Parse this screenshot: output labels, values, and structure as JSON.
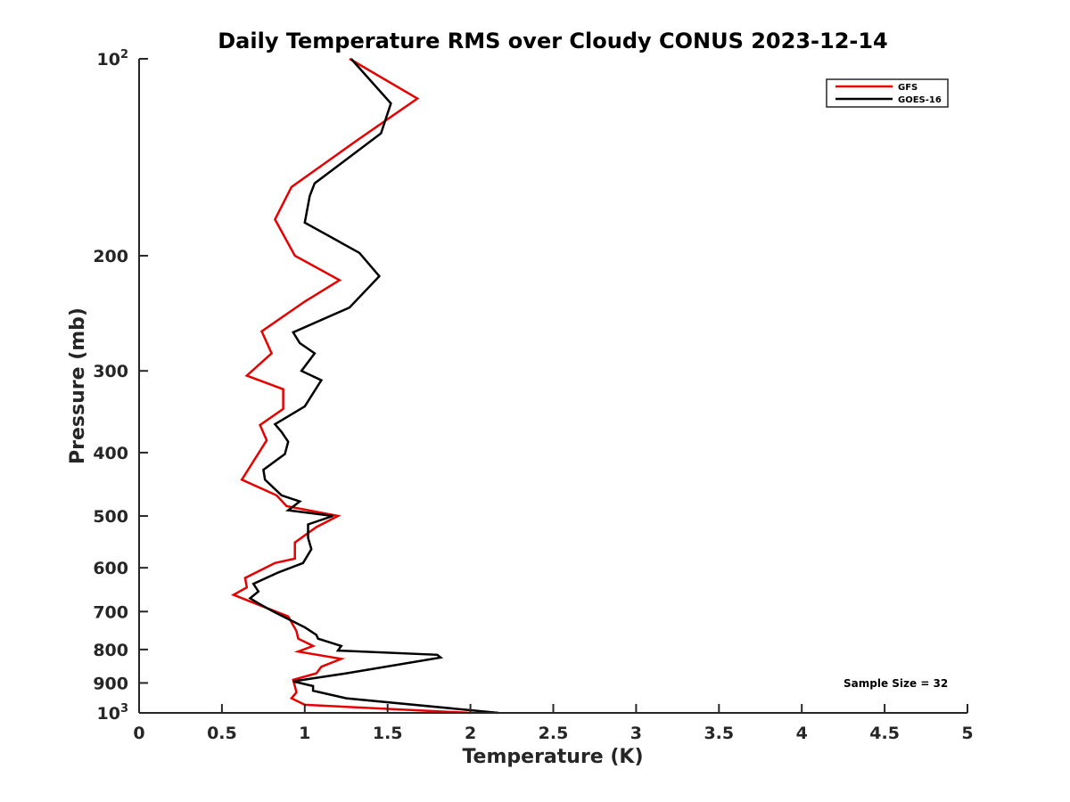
{
  "chart_data": {
    "type": "line",
    "title": "Daily Temperature RMS over Cloudy CONUS 2023-12-14",
    "xlabel": "Temperature (K)",
    "ylabel": "Pressure (mb)",
    "xlim": [
      0,
      5
    ],
    "ylim": [
      1000,
      100
    ],
    "y_scale": "log",
    "grid": false,
    "legend_position": "top-right",
    "x_ticks": [
      0,
      0.5,
      1,
      1.5,
      2,
      2.5,
      3,
      3.5,
      4,
      4.5,
      5
    ],
    "x_tick_labels": [
      "0",
      "0.5",
      "1",
      "1.5",
      "2",
      "2.5",
      "3",
      "3.5",
      "4",
      "4.5",
      "5"
    ],
    "y_ticks": [
      {
        "value": 100,
        "base": "10",
        "exp": "2"
      },
      {
        "value": 200,
        "label": "200"
      },
      {
        "value": 300,
        "label": "300"
      },
      {
        "value": 400,
        "label": "400"
      },
      {
        "value": 500,
        "label": "500"
      },
      {
        "value": 600,
        "label": "600"
      },
      {
        "value": 700,
        "label": "700"
      },
      {
        "value": 800,
        "label": "800"
      },
      {
        "value": 900,
        "label": "900"
      },
      {
        "value": 1000,
        "base": "10",
        "exp": "3"
      }
    ],
    "annotation": "Sample Size = 32",
    "series": [
      {
        "name": "GFS",
        "color": "#e60000",
        "points": [
          [
            1.27,
            100
          ],
          [
            1.68,
            115
          ],
          [
            1.32,
            133
          ],
          [
            0.92,
            157
          ],
          [
            0.82,
            176
          ],
          [
            0.94,
            200
          ],
          [
            1.21,
            218
          ],
          [
            1.0,
            235
          ],
          [
            0.74,
            261
          ],
          [
            0.8,
            282
          ],
          [
            0.65,
            305
          ],
          [
            0.87,
            320
          ],
          [
            0.87,
            343
          ],
          [
            0.73,
            363
          ],
          [
            0.77,
            383
          ],
          [
            0.62,
            440
          ],
          [
            0.83,
            465
          ],
          [
            0.89,
            483
          ],
          [
            1.2,
            500
          ],
          [
            1.07,
            520
          ],
          [
            0.94,
            549
          ],
          [
            0.94,
            581
          ],
          [
            0.82,
            590
          ],
          [
            0.64,
            622
          ],
          [
            0.65,
            643
          ],
          [
            0.57,
            660
          ],
          [
            0.75,
            688
          ],
          [
            0.9,
            712
          ],
          [
            0.95,
            750
          ],
          [
            0.96,
            770
          ],
          [
            1.05,
            790
          ],
          [
            0.96,
            806
          ],
          [
            1.22,
            827
          ],
          [
            1.1,
            850
          ],
          [
            1.07,
            870
          ],
          [
            0.93,
            890
          ],
          [
            0.95,
            930
          ],
          [
            0.92,
            950
          ],
          [
            1.0,
            972
          ],
          [
            2.0,
            1000
          ]
        ]
      },
      {
        "name": "GOES-16",
        "color": "#000000",
        "points": [
          [
            1.28,
            100
          ],
          [
            1.52,
            117
          ],
          [
            1.46,
            130
          ],
          [
            1.06,
            155
          ],
          [
            1.03,
            162
          ],
          [
            1.0,
            178
          ],
          [
            1.33,
            198
          ],
          [
            1.45,
            215
          ],
          [
            1.27,
            240
          ],
          [
            0.93,
            262
          ],
          [
            0.97,
            272
          ],
          [
            1.06,
            282
          ],
          [
            0.98,
            300
          ],
          [
            1.1,
            310
          ],
          [
            1.0,
            340
          ],
          [
            0.82,
            362
          ],
          [
            0.86,
            372
          ],
          [
            0.9,
            385
          ],
          [
            0.88,
            402
          ],
          [
            0.75,
            425
          ],
          [
            0.76,
            440
          ],
          [
            0.86,
            465
          ],
          [
            0.97,
            475
          ],
          [
            0.9,
            490
          ],
          [
            1.17,
            500
          ],
          [
            1.02,
            515
          ],
          [
            1.02,
            540
          ],
          [
            1.04,
            562
          ],
          [
            0.99,
            590
          ],
          [
            0.84,
            610
          ],
          [
            0.69,
            635
          ],
          [
            0.72,
            652
          ],
          [
            0.67,
            668
          ],
          [
            0.72,
            680
          ],
          [
            0.81,
            700
          ],
          [
            1.0,
            740
          ],
          [
            1.07,
            760
          ],
          [
            1.08,
            770
          ],
          [
            1.22,
            790
          ],
          [
            1.2,
            803
          ],
          [
            1.8,
            815
          ],
          [
            1.82,
            823
          ],
          [
            1.25,
            870
          ],
          [
            0.93,
            895
          ],
          [
            1.05,
            910
          ],
          [
            1.05,
            925
          ],
          [
            1.25,
            950
          ],
          [
            2.17,
            1000
          ]
        ]
      }
    ]
  }
}
